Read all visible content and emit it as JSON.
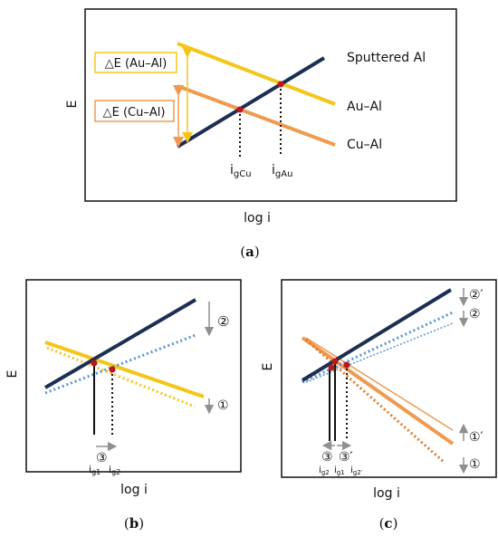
{
  "panel_a": {
    "caption_open": "(",
    "caption_letter": "a",
    "caption_close": ")",
    "ylabel": "E",
    "xlabel": "log i",
    "lines": {
      "sputtered": "Sputtered Al",
      "au_al": "Au–Al",
      "cu_al": "Cu–Al"
    },
    "boxes": {
      "au": "△E (Au–Al)",
      "cu": "△E (Cu–Al)"
    },
    "ig_cu": "i",
    "ig_cu_sub": "gCu",
    "ig_au": "i",
    "ig_au_sub": "gAu"
  },
  "panel_b": {
    "caption_open": "(",
    "caption_letter": "b",
    "caption_close": ")",
    "ylabel": "E",
    "xlabel": "log i",
    "marker_2": "②",
    "marker_1": "①",
    "marker_3": "③",
    "ig1": "i",
    "ig1_sub": "g1",
    "ig2": "i",
    "ig2_sub": "g2"
  },
  "panel_c": {
    "caption_open": "(",
    "caption_letter": "c",
    "caption_close": ")",
    "ylabel": "E",
    "xlabel": "log i",
    "marker_2p": "②′",
    "marker_2": "②",
    "marker_1p": "①′",
    "marker_1": "①",
    "marker_3": "③",
    "marker_3p": "③′",
    "ig2": "i",
    "ig2_sub": "g2",
    "ig1": "i",
    "ig1_sub": "g1",
    "ig2p": "i",
    "ig2p_sub": "g2′"
  },
  "colors": {
    "navy": "#1b2f52",
    "yellow": "#f5c518",
    "orange": "#ef9a4e",
    "blue_dotted": "#5b95d0",
    "red_dot": "#c0141b",
    "gray_arrow": "#909090"
  }
}
